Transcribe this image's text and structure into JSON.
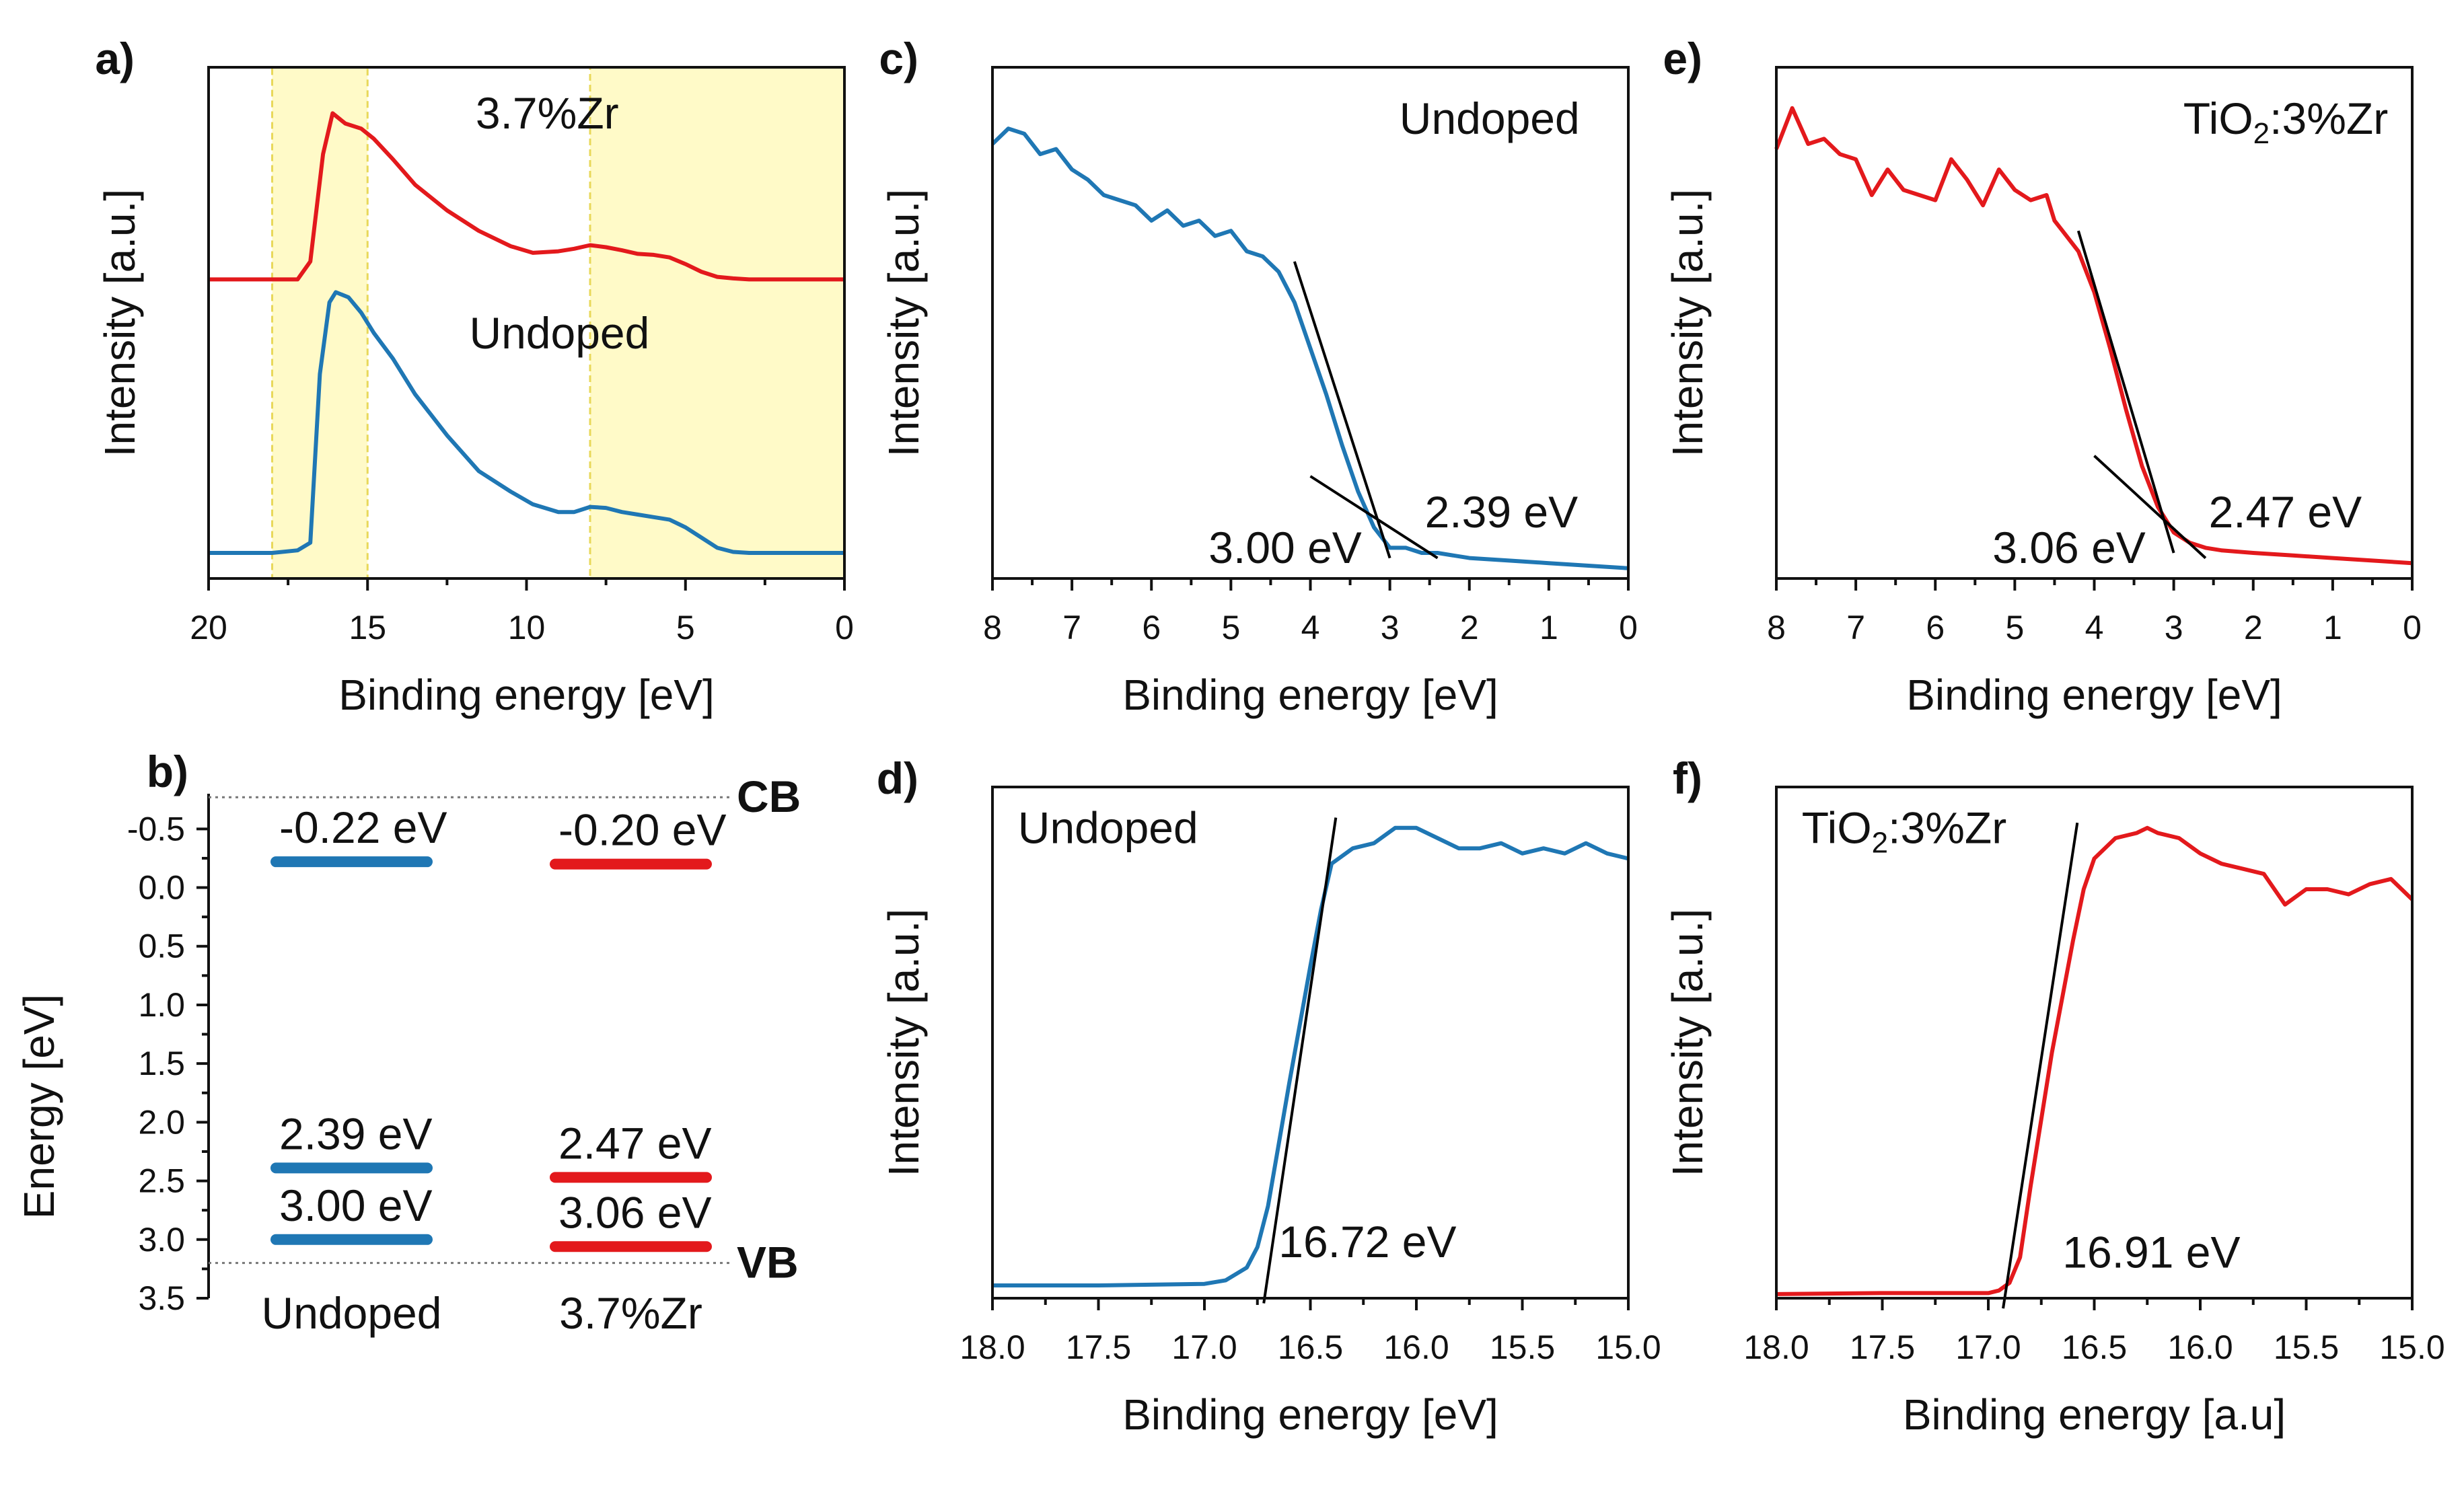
{
  "colors": {
    "undoped": "#1f77b4",
    "doped": "#e3191c",
    "fit": "#000000",
    "highlight": "#fff59a"
  },
  "chart_data": [
    {
      "panel": "a)",
      "type": "line",
      "xlabel": "Binding energy [eV]",
      "ylabel": "Intensity [a.u.]",
      "xlim": [
        20,
        0
      ],
      "ylim": [
        0,
        1
      ],
      "xticks": [
        "20",
        "15",
        "10",
        "5",
        "0"
      ],
      "highlight_ranges": [
        [
          18,
          15
        ],
        [
          8,
          0
        ]
      ],
      "annotations": [
        "3.7%Zr",
        "Undoped"
      ],
      "series": [
        {
          "name": "3.7%Zr",
          "color": "doped",
          "x": [
            20,
            19,
            18,
            17.2,
            16.8,
            16.4,
            16.1,
            15.7,
            15.2,
            14.8,
            14.2,
            13.5,
            12.5,
            11.5,
            10.5,
            9.8,
            9,
            8.5,
            8,
            7.5,
            7,
            6.5,
            6,
            5.5,
            5,
            4.5,
            4,
            3.5,
            3,
            2,
            1,
            0
          ],
          "y": [
            0.585,
            0.585,
            0.585,
            0.585,
            0.62,
            0.83,
            0.91,
            0.89,
            0.88,
            0.86,
            0.82,
            0.77,
            0.72,
            0.68,
            0.65,
            0.637,
            0.64,
            0.645,
            0.652,
            0.648,
            0.642,
            0.635,
            0.633,
            0.628,
            0.615,
            0.6,
            0.59,
            0.587,
            0.585,
            0.585,
            0.585,
            0.585
          ]
        },
        {
          "name": "Undoped",
          "color": "undoped",
          "x": [
            20,
            19,
            18,
            17.2,
            16.8,
            16.5,
            16.2,
            16,
            15.6,
            15.2,
            14.8,
            14.2,
            13.5,
            12.5,
            11.5,
            10.5,
            9.8,
            9,
            8.5,
            8,
            7.5,
            7,
            6.5,
            6,
            5.5,
            5,
            4.5,
            4,
            3.5,
            3,
            2,
            1,
            0
          ],
          "y": [
            0.05,
            0.05,
            0.05,
            0.055,
            0.07,
            0.4,
            0.54,
            0.56,
            0.55,
            0.52,
            0.48,
            0.43,
            0.36,
            0.28,
            0.21,
            0.17,
            0.145,
            0.13,
            0.13,
            0.14,
            0.138,
            0.13,
            0.125,
            0.12,
            0.115,
            0.1,
            0.08,
            0.06,
            0.052,
            0.05,
            0.05,
            0.05,
            0.05
          ]
        }
      ]
    },
    {
      "panel": "b)",
      "type": "band-diagram",
      "ylabel": "Energy [eV]",
      "ylim": [
        3.5,
        -0.8
      ],
      "yticks": [
        "-0.5",
        "0.0",
        "0.5",
        "1.0",
        "1.5",
        "2.0",
        "2.5",
        "3.0",
        "3.5"
      ],
      "reference_lines": [
        {
          "label": "CB",
          "value": -0.77
        },
        {
          "label": "VB",
          "value": 3.2
        }
      ],
      "groups": [
        {
          "name": "Undoped",
          "color": "undoped",
          "levels": [
            {
              "value": -0.22,
              "label": "-0.22 eV"
            },
            {
              "value": 2.39,
              "label": "2.39 eV"
            },
            {
              "value": 3.0,
              "label": "3.00 eV"
            }
          ]
        },
        {
          "name": "3.7%Zr",
          "color": "doped",
          "levels": [
            {
              "value": -0.2,
              "label": "-0.20 eV"
            },
            {
              "value": 2.47,
              "label": "2.47 eV"
            },
            {
              "value": 3.06,
              "label": "3.06 eV"
            }
          ]
        }
      ]
    },
    {
      "panel": "c)",
      "type": "line",
      "xlabel": "Binding energy [eV]",
      "ylabel": "Intensity [a.u.]",
      "xlim": [
        8,
        0
      ],
      "ylim": [
        0,
        1
      ],
      "xticks": [
        "8",
        "7",
        "6",
        "5",
        "4",
        "3",
        "2",
        "1",
        "0"
      ],
      "annotations": [
        "Undoped",
        "3.00 eV",
        "2.39 eV"
      ],
      "fit_lines": [
        {
          "x": [
            4.2,
            3.0
          ],
          "y": [
            0.62,
            0.04
          ]
        },
        {
          "x": [
            4.0,
            2.4
          ],
          "y": [
            0.2,
            0.04
          ]
        }
      ],
      "series": [
        {
          "name": "Undoped",
          "color": "undoped",
          "x": [
            8,
            7.8,
            7.6,
            7.4,
            7.2,
            7.0,
            6.8,
            6.6,
            6.4,
            6.2,
            6.0,
            5.8,
            5.6,
            5.4,
            5.2,
            5.0,
            4.8,
            4.6,
            4.4,
            4.2,
            4.0,
            3.8,
            3.6,
            3.4,
            3.2,
            3.0,
            2.8,
            2.6,
            2.4,
            2.0,
            1.5,
            1.0,
            0.5,
            0
          ],
          "y": [
            0.85,
            0.88,
            0.87,
            0.83,
            0.84,
            0.8,
            0.78,
            0.75,
            0.74,
            0.73,
            0.7,
            0.72,
            0.69,
            0.7,
            0.67,
            0.68,
            0.64,
            0.63,
            0.6,
            0.54,
            0.45,
            0.36,
            0.26,
            0.17,
            0.1,
            0.06,
            0.06,
            0.05,
            0.05,
            0.04,
            0.035,
            0.03,
            0.025,
            0.02
          ]
        }
      ]
    },
    {
      "panel": "d)",
      "type": "line",
      "xlabel": "Binding energy [eV]",
      "ylabel": "Intensity [a.u.]",
      "xlim": [
        18.0,
        15.0
      ],
      "ylim": [
        0,
        1
      ],
      "xticks": [
        "18.0",
        "17.5",
        "17.0",
        "16.5",
        "16.0",
        "15.5",
        "15.0"
      ],
      "annotations": [
        "Undoped",
        "16.72 eV"
      ],
      "fit_lines": [
        {
          "x": [
            16.72,
            16.38
          ],
          "y": [
            -0.01,
            0.94
          ]
        }
      ],
      "series": [
        {
          "name": "Undoped",
          "color": "undoped",
          "x": [
            18.0,
            17.5,
            17.0,
            16.9,
            16.8,
            16.75,
            16.7,
            16.6,
            16.5,
            16.45,
            16.4,
            16.3,
            16.2,
            16.1,
            16.0,
            15.9,
            15.8,
            15.7,
            15.6,
            15.5,
            15.4,
            15.3,
            15.2,
            15.1,
            15.0
          ],
          "y": [
            0.025,
            0.025,
            0.028,
            0.035,
            0.06,
            0.1,
            0.18,
            0.42,
            0.65,
            0.76,
            0.85,
            0.88,
            0.89,
            0.92,
            0.92,
            0.9,
            0.88,
            0.88,
            0.89,
            0.87,
            0.88,
            0.87,
            0.89,
            0.87,
            0.86
          ]
        }
      ]
    },
    {
      "panel": "e)",
      "type": "line",
      "xlabel": "Binding energy [eV]",
      "ylabel": "Intensity [a.u.]",
      "xlim": [
        8,
        0
      ],
      "ylim": [
        0,
        1
      ],
      "xticks": [
        "8",
        "7",
        "6",
        "5",
        "4",
        "3",
        "2",
        "1",
        "0"
      ],
      "annotations": [
        "TiO2:3%Zr",
        "3.06 eV",
        "2.47 eV"
      ],
      "fit_lines": [
        {
          "x": [
            4.2,
            3.0
          ],
          "y": [
            0.68,
            0.05
          ]
        },
        {
          "x": [
            4.0,
            2.6
          ],
          "y": [
            0.24,
            0.04
          ]
        }
      ],
      "series": [
        {
          "name": "TiO2:3%Zr",
          "color": "doped",
          "x": [
            8,
            7.8,
            7.6,
            7.4,
            7.2,
            7.0,
            6.8,
            6.6,
            6.4,
            6.2,
            6.0,
            5.8,
            5.6,
            5.4,
            5.2,
            5.0,
            4.8,
            4.6,
            4.5,
            4.4,
            4.2,
            4.0,
            3.8,
            3.6,
            3.4,
            3.2,
            3.0,
            2.8,
            2.6,
            2.4,
            2.0,
            1.5,
            1.0,
            0.5,
            0
          ],
          "y": [
            0.84,
            0.92,
            0.85,
            0.86,
            0.83,
            0.82,
            0.75,
            0.8,
            0.76,
            0.75,
            0.74,
            0.82,
            0.78,
            0.73,
            0.8,
            0.76,
            0.74,
            0.75,
            0.7,
            0.68,
            0.64,
            0.56,
            0.45,
            0.33,
            0.22,
            0.14,
            0.09,
            0.07,
            0.06,
            0.055,
            0.05,
            0.045,
            0.04,
            0.035,
            0.03
          ]
        }
      ]
    },
    {
      "panel": "f)",
      "type": "line",
      "xlabel": "Binding energy [a.u]",
      "ylabel": "Intensity [a.u.]",
      "xlim": [
        18.0,
        15.0
      ],
      "ylim": [
        0,
        1
      ],
      "xticks": [
        "18.0",
        "17.5",
        "17.0",
        "16.5",
        "16.0",
        "15.5",
        "15.0"
      ],
      "annotations": [
        "TiO2:3%Zr",
        "16.91 eV"
      ],
      "fit_lines": [
        {
          "x": [
            16.93,
            16.58
          ],
          "y": [
            -0.02,
            0.93
          ]
        }
      ],
      "series": [
        {
          "name": "TiO2:3%Zr",
          "color": "doped",
          "x": [
            18.0,
            17.5,
            17.0,
            16.95,
            16.9,
            16.85,
            16.8,
            16.7,
            16.6,
            16.55,
            16.5,
            16.4,
            16.3,
            16.25,
            16.2,
            16.1,
            16.0,
            15.9,
            15.8,
            15.7,
            15.6,
            15.5,
            15.4,
            15.3,
            15.2,
            15.1,
            15.0
          ],
          "y": [
            0.008,
            0.01,
            0.01,
            0.015,
            0.03,
            0.08,
            0.22,
            0.48,
            0.7,
            0.8,
            0.86,
            0.9,
            0.91,
            0.92,
            0.91,
            0.9,
            0.87,
            0.85,
            0.84,
            0.83,
            0.77,
            0.8,
            0.8,
            0.79,
            0.81,
            0.82,
            0.78
          ]
        }
      ]
    }
  ]
}
